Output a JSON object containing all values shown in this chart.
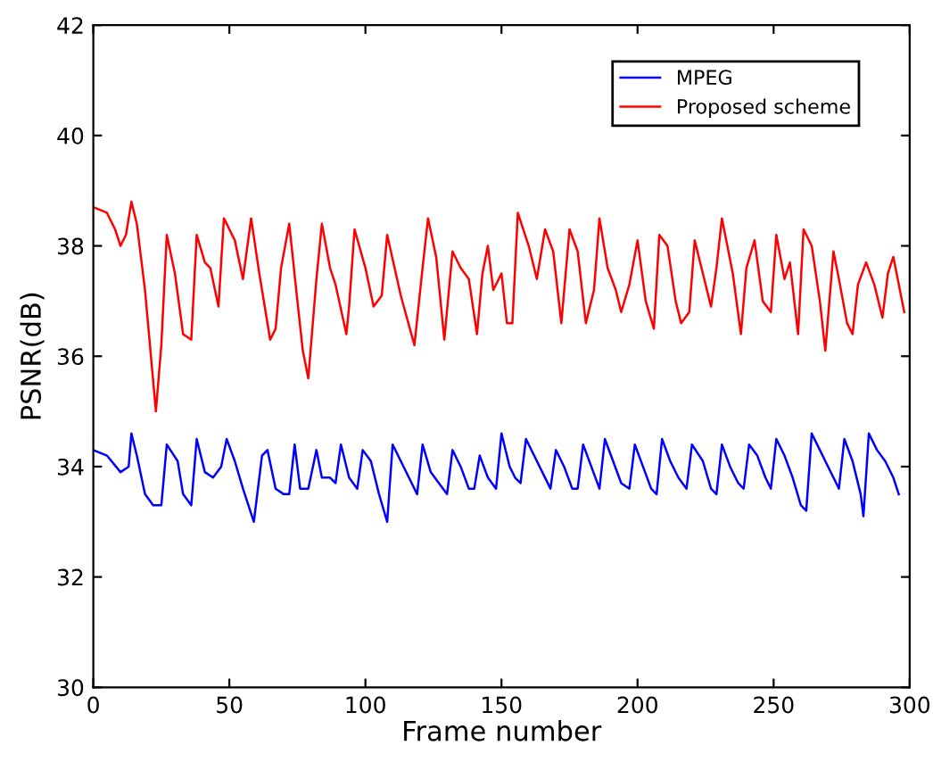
{
  "chart_data": {
    "type": "line",
    "xlabel": "Frame number",
    "ylabel": "PSNR(dB)",
    "xlim": [
      0,
      300
    ],
    "ylim": [
      30,
      42
    ],
    "xticks": [
      0,
      50,
      100,
      150,
      200,
      250,
      300
    ],
    "yticks": [
      30,
      32,
      34,
      36,
      38,
      40,
      42
    ],
    "legend": "top right",
    "grid": false,
    "marker": "none",
    "line_style": "solid",
    "series": [
      {
        "name": "MPEG",
        "color": "#0000ff",
        "x": [
          0,
          5,
          10,
          13,
          14,
          16,
          19,
          22,
          25,
          27,
          31,
          33,
          36,
          38,
          41,
          44,
          47,
          49,
          52,
          55,
          59,
          62,
          64,
          67,
          70,
          72,
          74,
          76,
          79,
          82,
          84,
          87,
          89,
          91,
          94,
          97,
          99,
          102,
          105,
          108,
          110,
          113,
          117,
          119,
          121,
          124,
          127,
          130,
          132,
          135,
          138,
          140,
          142,
          145,
          148,
          150,
          153,
          155,
          157,
          159,
          162,
          165,
          168,
          170,
          173,
          176,
          178,
          180,
          183,
          186,
          188,
          191,
          194,
          197,
          199,
          202,
          205,
          207,
          209,
          212,
          215,
          218,
          220,
          224,
          227,
          229,
          231,
          234,
          237,
          239,
          241,
          244,
          247,
          249,
          251,
          254,
          257,
          260,
          262,
          264,
          267,
          270,
          272,
          274,
          276,
          279,
          282,
          283,
          285,
          288,
          291,
          294,
          296
        ],
        "values": [
          34.3,
          34.2,
          33.9,
          34.0,
          34.6,
          34.2,
          33.5,
          33.3,
          33.3,
          34.4,
          34.1,
          33.5,
          33.3,
          34.5,
          33.9,
          33.8,
          34.0,
          34.5,
          34.1,
          33.6,
          33.0,
          34.2,
          34.3,
          33.6,
          33.5,
          33.5,
          34.4,
          33.6,
          33.6,
          34.3,
          33.8,
          33.8,
          33.7,
          34.4,
          33.8,
          33.6,
          34.3,
          34.1,
          33.5,
          33.0,
          34.4,
          34.1,
          33.7,
          33.5,
          34.4,
          33.9,
          33.7,
          33.5,
          34.3,
          34.0,
          33.6,
          33.6,
          34.2,
          33.8,
          33.6,
          34.6,
          34.0,
          33.8,
          33.7,
          34.5,
          34.2,
          33.9,
          33.6,
          34.3,
          34.0,
          33.6,
          33.6,
          34.4,
          34.0,
          33.6,
          34.5,
          34.1,
          33.7,
          33.6,
          34.4,
          34.0,
          33.6,
          33.5,
          34.5,
          34.1,
          33.8,
          33.6,
          34.4,
          34.1,
          33.6,
          33.5,
          34.4,
          34.0,
          33.7,
          33.6,
          34.4,
          34.2,
          33.8,
          33.6,
          34.5,
          34.2,
          33.8,
          33.3,
          33.2,
          34.6,
          34.3,
          34.0,
          33.8,
          33.6,
          34.5,
          34.1,
          33.5,
          33.1,
          34.6,
          34.3,
          34.1,
          33.8,
          33.5
        ]
      },
      {
        "name": "Proposed scheme",
        "color": "#ff0000",
        "x": [
          0,
          5,
          8,
          10,
          12,
          14,
          16,
          19,
          23,
          25,
          27,
          30,
          33,
          36,
          38,
          41,
          43,
          46,
          48,
          52,
          55,
          58,
          61,
          65,
          67,
          69,
          72,
          75,
          77,
          79,
          82,
          84,
          87,
          89,
          93,
          94,
          96,
          100,
          103,
          106,
          108,
          113,
          118,
          121,
          123,
          126,
          129,
          132,
          135,
          138,
          141,
          143,
          145,
          147,
          150,
          152,
          154,
          156,
          160,
          163,
          166,
          169,
          172,
          175,
          178,
          181,
          184,
          186,
          189,
          192,
          194,
          197,
          200,
          203,
          206,
          208,
          211,
          214,
          216,
          219,
          221,
          224,
          227,
          229,
          231,
          235,
          238,
          240,
          243,
          246,
          249,
          251,
          254,
          256,
          259,
          261,
          264,
          267,
          269,
          272,
          274,
          277,
          279,
          281,
          284,
          287,
          290,
          292,
          294,
          296,
          298
        ],
        "values": [
          38.7,
          38.6,
          38.3,
          38.0,
          38.2,
          38.8,
          38.4,
          37.2,
          35.0,
          36.2,
          38.2,
          37.5,
          36.4,
          36.3,
          38.2,
          37.7,
          37.6,
          36.9,
          38.5,
          38.1,
          37.4,
          38.5,
          37.5,
          36.3,
          36.5,
          37.6,
          38.4,
          37.0,
          36.1,
          35.6,
          37.4,
          38.4,
          37.6,
          37.3,
          36.4,
          36.9,
          38.3,
          37.6,
          36.9,
          37.1,
          38.2,
          37.1,
          36.2,
          37.6,
          38.5,
          37.8,
          36.3,
          37.9,
          37.6,
          37.4,
          36.4,
          37.5,
          38.0,
          37.2,
          37.5,
          36.6,
          36.6,
          38.6,
          38.0,
          37.4,
          38.3,
          37.9,
          36.6,
          38.3,
          37.9,
          36.6,
          37.2,
          38.5,
          37.6,
          37.2,
          36.8,
          37.3,
          38.1,
          37.0,
          36.5,
          38.2,
          38.0,
          37.0,
          36.6,
          36.8,
          38.1,
          37.5,
          36.9,
          37.6,
          38.5,
          37.5,
          36.4,
          37.6,
          38.1,
          37.0,
          36.8,
          38.2,
          37.4,
          37.7,
          36.4,
          38.3,
          38.0,
          37.0,
          36.1,
          37.9,
          37.4,
          36.6,
          36.4,
          37.3,
          37.7,
          37.3,
          36.7,
          37.5,
          37.8,
          37.3,
          36.8
        ]
      }
    ]
  }
}
